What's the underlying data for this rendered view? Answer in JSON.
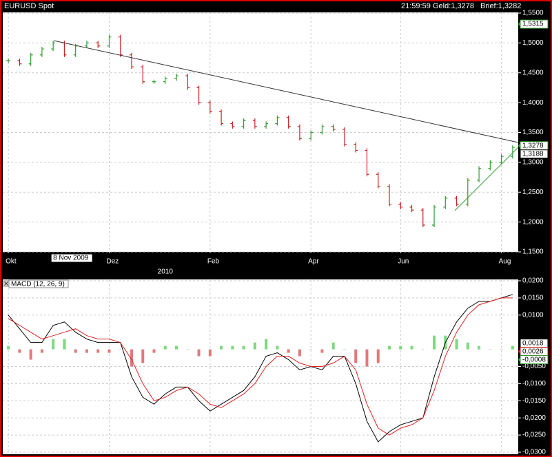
{
  "header": {
    "symbol": "EURUSD Spot",
    "time": "21:59:59",
    "bid": "Geld:1,3278",
    "ask": "Brief:1,3282"
  },
  "chart_data": [
    {
      "type": "price",
      "categories": [
        "Okt",
        null,
        null,
        null,
        null,
        null,
        null,
        null,
        null,
        "Dez",
        null,
        null,
        null,
        null,
        null,
        null,
        null,
        null,
        "Feb",
        null,
        null,
        null,
        null,
        null,
        null,
        null,
        null,
        "Apr",
        null,
        null,
        null,
        null,
        null,
        null,
        null,
        "Jun",
        null,
        null,
        null,
        null,
        null,
        null,
        null,
        null,
        "Aug",
        null
      ],
      "values": [
        1.47,
        1.465,
        1.48,
        1.49,
        1.5,
        1.48,
        1.495,
        1.5,
        1.495,
        1.51,
        1.48,
        1.46,
        1.435,
        1.435,
        1.44,
        1.445,
        1.425,
        1.4,
        1.385,
        1.365,
        1.36,
        1.37,
        1.36,
        1.365,
        1.375,
        1.36,
        1.34,
        1.35,
        1.36,
        1.355,
        1.33,
        1.32,
        1.28,
        1.26,
        1.23,
        1.225,
        1.22,
        1.195,
        1.225,
        1.24,
        1.23,
        1.27,
        1.29,
        1.3,
        1.31,
        1.325
      ],
      "up_color": "#2e9e2e",
      "down_color": "#d02020",
      "ylim": [
        1.15,
        1.55
      ],
      "yticks": [
        {
          "value": 1.55,
          "label": "1,5500"
        },
        {
          "value": 1.5,
          "label": "1,5000"
        },
        {
          "value": 1.45,
          "label": "1,4500"
        },
        {
          "value": 1.4,
          "label": "1,4000"
        },
        {
          "value": 1.35,
          "label": "1,3500"
        },
        {
          "value": 1.3,
          "label": "1,3000"
        },
        {
          "value": 1.25,
          "label": "1,2500"
        },
        {
          "value": 1.2,
          "label": "1,2000"
        },
        {
          "value": 1.15,
          "label": "1,1500"
        }
      ],
      "grid": true,
      "year_label": "2010",
      "cursor_label": "8 Nov 2009",
      "markers": [
        {
          "value": 1.5315,
          "label": "1,5315",
          "color": "#2e9e2e"
        },
        {
          "value": 1.3278,
          "label": "1,3278",
          "color": "#2e9e2e"
        },
        {
          "value": 1.3188,
          "label": "1,3188",
          "color": "#000000"
        }
      ]
    },
    {
      "type": "macd",
      "title": "MACD (12, 26, 9)",
      "series": [
        {
          "style": "histogram",
          "color": "#7ed87e",
          "negative_color": "#e07a7a",
          "values": [
            0.001,
            -0.001,
            -0.003,
            -0.001,
            0.003,
            0.003,
            -0.001,
            -0.001,
            -0.001,
            -0.001,
            0,
            -0.005,
            -0.004,
            -0.001,
            0.001,
            0.001,
            0,
            -0.002,
            -0.002,
            0.001,
            0.001,
            0.001,
            0.002,
            0.003,
            0.001,
            -0.001,
            -0.002,
            0,
            -0.001,
            0.002,
            0,
            -0.004,
            -0.005,
            -0.004,
            0.001,
            0.001,
            0.001,
            0,
            0.004,
            0.004,
            0.003,
            0.002,
            0.001,
            0,
            0,
            0.001
          ]
        },
        {
          "style": "line",
          "color": "#000000",
          "values": [
            0.01,
            0.006,
            0.002,
            0.002,
            0.007,
            0.008,
            0.005,
            0.003,
            0.002,
            0.002,
            0.002,
            -0.008,
            -0.014,
            -0.016,
            -0.013,
            -0.011,
            -0.011,
            -0.015,
            -0.018,
            -0.016,
            -0.014,
            -0.012,
            -0.008,
            -0.002,
            -0.001,
            -0.003,
            -0.006,
            -0.005,
            -0.006,
            -0.002,
            -0.002,
            -0.01,
            -0.021,
            -0.027,
            -0.024,
            -0.022,
            -0.021,
            -0.02,
            -0.008,
            0.002,
            0.008,
            0.012,
            0.014,
            0.014,
            0.015,
            0.016
          ]
        },
        {
          "style": "line",
          "color": "#e02020",
          "values": [
            0.009,
            0.007,
            0.005,
            0.003,
            0.004,
            0.005,
            0.006,
            0.004,
            0.003,
            0.003,
            0.002,
            -0.003,
            -0.01,
            -0.015,
            -0.014,
            -0.012,
            -0.011,
            -0.013,
            -0.016,
            -0.017,
            -0.015,
            -0.013,
            -0.01,
            -0.005,
            -0.002,
            -0.002,
            -0.004,
            -0.005,
            -0.005,
            -0.004,
            -0.002,
            -0.006,
            -0.016,
            -0.023,
            -0.025,
            -0.023,
            -0.022,
            -0.02,
            -0.012,
            -0.002,
            0.005,
            0.01,
            0.013,
            0.014,
            0.015,
            0.015
          ]
        }
      ],
      "ylim": [
        -0.03,
        0.02
      ],
      "yticks": [
        {
          "value": 0.02,
          "label": "0,0200"
        },
        {
          "value": 0.015,
          "label": "0,0150"
        },
        {
          "value": 0.01,
          "label": "0,0100"
        },
        {
          "value": -0.005,
          "label": "-0,0050"
        },
        {
          "value": -0.01,
          "label": "-0,0100"
        },
        {
          "value": -0.015,
          "label": "-0,0150"
        },
        {
          "value": -0.02,
          "label": "-0,0200"
        },
        {
          "value": -0.025,
          "label": "-0,0250"
        },
        {
          "value": -0.03,
          "label": "-0,0300"
        }
      ],
      "grid": true,
      "markers": [
        {
          "value": 0.0018,
          "label": "0,0018",
          "color": "#000000"
        },
        {
          "value": 0.0026,
          "label": "0,0026",
          "color": "#d02020"
        },
        {
          "value": -0.0008,
          "label": "-0,0008",
          "color": "#2e9e2e"
        }
      ]
    }
  ]
}
